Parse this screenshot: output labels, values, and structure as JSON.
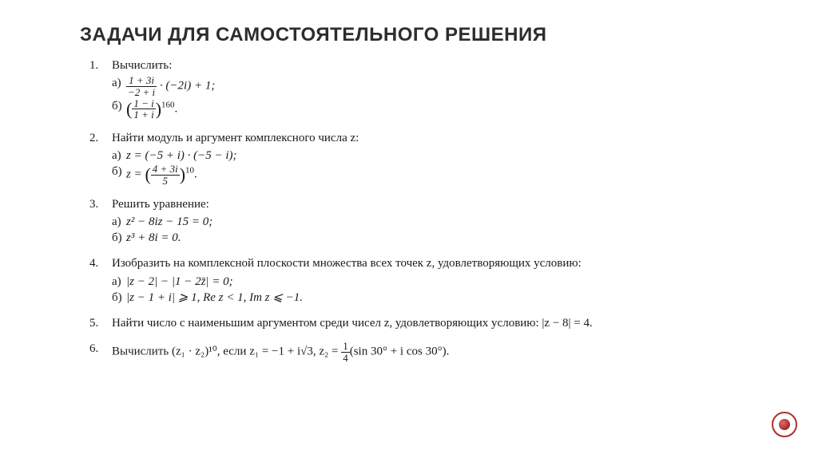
{
  "colors": {
    "background": "#ffffff",
    "text": "#1a1a1a",
    "title": "#2d2d2d",
    "badge_border": "#b02e2e",
    "badge_fill_start": "#e06b6b",
    "badge_fill_end": "#a62828"
  },
  "typography": {
    "title_family": "Arial, sans-serif",
    "body_family": "Times New Roman, serif",
    "title_size_pt": 18,
    "body_size_pt": 11
  },
  "title": "ЗАДАЧИ ДЛЯ САМОСТОЯТЕЛЬНОГО РЕШЕНИЯ",
  "problems": [
    {
      "num": "1.",
      "prompt": "Вычислить:",
      "subs": [
        {
          "label": "а)",
          "frac_num": "1 + 3i",
          "frac_den": "−2 + i",
          "after": " · (−2i) + 1;"
        },
        {
          "label": "б)",
          "paren_frac_num": "1 − i",
          "paren_frac_den": "1 + i",
          "exponent": "160",
          "after": "."
        }
      ]
    },
    {
      "num": "2.",
      "prompt": "Найти модуль и аргумент комплексного числа z:",
      "subs": [
        {
          "label": "а)",
          "plain": "z = (−5 + i) · (−5 − i);"
        },
        {
          "label": "б)",
          "pre": "z = ",
          "paren_frac_num": "4 + 3i",
          "paren_frac_den": "5",
          "exponent": "10",
          "after": "."
        }
      ]
    },
    {
      "num": "3.",
      "prompt": "Решить уравнение:",
      "subs": [
        {
          "label": "а)",
          "plain": "z² − 8iz − 15 = 0;"
        },
        {
          "label": "б)",
          "plain": "z³ + 8i = 0."
        }
      ]
    },
    {
      "num": "4.",
      "prompt": "Изобразить на комплексной плоскости множества всех точек z, удовлетворяющих условию:",
      "subs": [
        {
          "label": "а)",
          "plain": "|z − 2| − |1 − 2z̄| = 0;"
        },
        {
          "label": "б)",
          "plain": "|z − 1 + i| ⩾ 1, Re z < 1, Im z ⩽ −1."
        }
      ]
    },
    {
      "num": "5.",
      "prompt": "Найти число с наименьшим аргументом среди чисел z, удовлетворяющих условию: |z − 8| = 4."
    },
    {
      "num": "6.",
      "prompt_pre": "Вычислить (z₁ · z₂)¹⁰, если z₁ = −1 + i√3, z₂ = ",
      "frac_num": "1",
      "frac_den": "4",
      "prompt_post": "(sin 30° + i cos 30°)."
    }
  ]
}
